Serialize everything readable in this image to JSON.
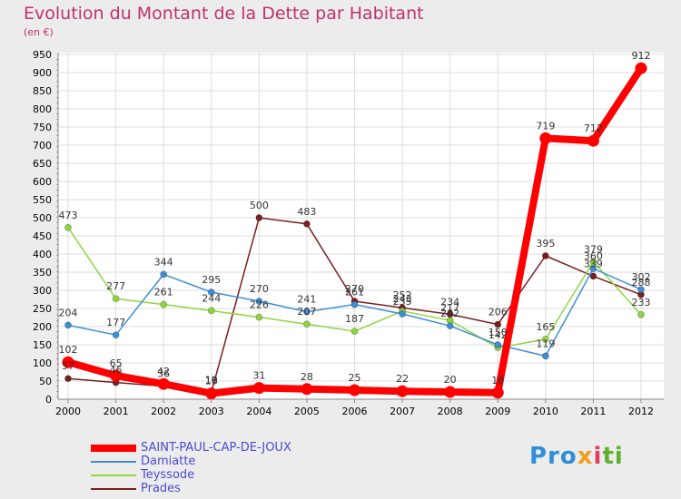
{
  "chart_data": {
    "type": "line",
    "title": "Evolution du Montant de la Dette par Habitant",
    "subtitle": "(en €)",
    "x": [
      "2000",
      "2001",
      "2002",
      "2003",
      "2004",
      "2005",
      "2006",
      "2007",
      "2008",
      "2009",
      "2010",
      "2011",
      "2012"
    ],
    "ylim": [
      0,
      950
    ],
    "yticks": [
      0,
      50,
      100,
      150,
      200,
      250,
      300,
      350,
      400,
      450,
      500,
      550,
      600,
      650,
      700,
      750,
      800,
      850,
      900,
      950
    ],
    "grid": true,
    "legend_position": "bottom-left",
    "series": [
      {
        "name": "SAINT-PAUL-CAP-DE-JOUX",
        "color": "#ff0000",
        "values": [
          102,
          65,
          42,
          16,
          31,
          28,
          25,
          22,
          20,
          18,
          719,
          712,
          912
        ]
      },
      {
        "name": "Damiatte",
        "color": "#3e8ed6",
        "values": [
          204,
          177,
          344,
          295,
          270,
          241,
          261,
          235,
          202,
          150,
          119,
          360,
          302
        ]
      },
      {
        "name": "Teyssode",
        "color": "#8ed63e",
        "values": [
          473,
          277,
          261,
          244,
          226,
          207,
          187,
          243,
          217,
          142,
          165,
          379,
          233
        ]
      },
      {
        "name": "Prades",
        "color": "#7a1e1e",
        "values": [
          57,
          46,
          36,
          19,
          500,
          483,
          270,
          252,
          234,
          206,
          395,
          339,
          288
        ]
      }
    ]
  },
  "logo": {
    "p1": "Pro",
    "p2": "x",
    "p3": "i",
    "p4": "ti"
  }
}
